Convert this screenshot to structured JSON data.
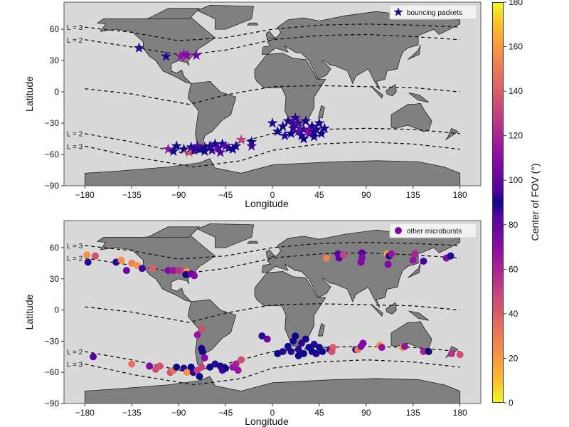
{
  "colorbar": {
    "label": "Center of FOV (°)",
    "range": [
      0,
      180
    ],
    "ticks": [
      "0",
      "20",
      "40",
      "60",
      "80",
      "100",
      "120",
      "140",
      "160",
      "180"
    ],
    "colormap": "plasma (mirrored: yellow at 0 and 180, dark blue at 90)"
  },
  "chart_data": [
    {
      "type": "scatter",
      "xlabel": "Longitude",
      "ylabel": "Latitude",
      "xlim": [
        -200,
        200
      ],
      "ylim": [
        -90,
        86
      ],
      "xticks": [
        "−180",
        "−135",
        "−90",
        "−45",
        "0",
        "45",
        "90",
        "135",
        "180"
      ],
      "yticks": [
        "−90",
        "−60",
        "−30",
        "0",
        "30",
        "60"
      ],
      "legend": {
        "label": "bouncing packets",
        "marker": "star",
        "placement": "top-right"
      },
      "l_shell_labels": {
        "north_3": "L = 3",
        "north_2": "L = 2",
        "south_2": "L = 2",
        "south_3": "L = 3"
      },
      "points": [
        [
          -128,
          42,
          95
        ],
        [
          -102,
          34,
          85
        ],
        [
          -88,
          34,
          60
        ],
        [
          -85,
          36,
          62
        ],
        [
          -82,
          35,
          65
        ],
        [
          -73,
          35,
          70
        ],
        [
          -100,
          -55,
          60
        ],
        [
          -92,
          -52,
          90
        ],
        [
          -95,
          -57,
          90
        ],
        [
          -85,
          -55,
          88
        ],
        [
          -80,
          -58,
          40
        ],
        [
          -78,
          -53,
          95
        ],
        [
          -75,
          -56,
          85
        ],
        [
          -70,
          -55,
          90
        ],
        [
          -65,
          -53,
          92
        ],
        [
          -60,
          -52,
          85
        ],
        [
          -58,
          -56,
          95
        ],
        [
          -55,
          -50,
          88
        ],
        [
          -52,
          -54,
          75
        ],
        [
          -50,
          -58,
          80
        ],
        [
          -48,
          -50,
          90
        ],
        [
          -45,
          -52,
          70
        ],
        [
          -42,
          -54,
          85
        ],
        [
          -38,
          -55,
          90
        ],
        [
          -35,
          -52,
          88
        ],
        [
          -30,
          -46,
          45
        ],
        [
          -20,
          -48,
          90
        ],
        [
          -20,
          -52,
          80
        ],
        [
          -65,
          -57,
          88
        ],
        [
          -72,
          -52,
          80
        ],
        [
          0,
          -30,
          95
        ],
        [
          5,
          -38,
          90
        ],
        [
          10,
          -33,
          92
        ],
        [
          15,
          -28,
          88
        ],
        [
          18,
          -40,
          90
        ],
        [
          20,
          -35,
          85
        ],
        [
          22,
          -25,
          95
        ],
        [
          25,
          -30,
          80
        ],
        [
          28,
          -42,
          90
        ],
        [
          30,
          -36,
          85
        ],
        [
          32,
          -28,
          92
        ],
        [
          35,
          -40,
          70
        ],
        [
          38,
          -33,
          88
        ],
        [
          40,
          -43,
          90
        ],
        [
          42,
          -36,
          95
        ],
        [
          45,
          -30,
          88
        ],
        [
          47,
          -40,
          90
        ],
        [
          50,
          -35,
          92
        ],
        [
          12,
          -42,
          95
        ],
        [
          25,
          -38,
          75
        ],
        [
          35,
          -37,
          65
        ],
        [
          30,
          -45,
          90
        ],
        [
          20,
          -30,
          100
        ],
        [
          40,
          -38,
          92
        ]
      ]
    },
    {
      "type": "scatter",
      "xlabel": "Longitude",
      "ylabel": "Latitude",
      "xlim": [
        -200,
        200
      ],
      "ylim": [
        -90,
        86
      ],
      "xticks": [
        "−180",
        "−135",
        "−90",
        "−45",
        "0",
        "45",
        "90",
        "135",
        "180"
      ],
      "yticks": [
        "−90",
        "−60",
        "−30",
        "0",
        "30",
        "60"
      ],
      "legend": {
        "label": "other microbursts",
        "marker": "circle",
        "placement": "top-right"
      },
      "l_shell_labels": {
        "north_3": "L = 3",
        "north_2": "L = 2",
        "south_2": "L = 2",
        "south_3": "L = 3"
      },
      "points": [
        [
          -178,
          53,
          20
        ],
        [
          -170,
          52,
          40
        ],
        [
          -177,
          46,
          95
        ],
        [
          -150,
          46,
          95
        ],
        [
          -145,
          48,
          20
        ],
        [
          -135,
          45,
          25
        ],
        [
          -130,
          43,
          20
        ],
        [
          -140,
          38,
          70
        ],
        [
          -125,
          40,
          80
        ],
        [
          -115,
          40,
          35
        ],
        [
          -100,
          38,
          65
        ],
        [
          -95,
          38,
          60
        ],
        [
          -90,
          38,
          50
        ],
        [
          -85,
          37,
          45
        ],
        [
          -82,
          37,
          20
        ],
        [
          -83,
          34,
          90
        ],
        [
          -78,
          35,
          70
        ],
        [
          -75,
          33,
          65
        ],
        [
          52,
          50,
          25
        ],
        [
          63,
          54,
          75
        ],
        [
          64,
          50,
          75
        ],
        [
          68,
          53,
          45
        ],
        [
          86,
          55,
          75
        ],
        [
          86,
          50,
          65
        ],
        [
          85,
          46,
          65
        ],
        [
          110,
          54,
          15
        ],
        [
          112,
          52,
          95
        ],
        [
          111,
          44,
          65
        ],
        [
          114,
          54,
          60
        ],
        [
          135,
          48,
          60
        ],
        [
          137,
          54,
          55
        ],
        [
          145,
          47,
          80
        ],
        [
          167,
          50,
          65
        ],
        [
          171,
          52,
          95
        ],
        [
          -68,
          -18,
          40
        ],
        [
          -72,
          -24,
          60
        ],
        [
          -10,
          -25,
          95
        ],
        [
          -5,
          -28,
          70
        ],
        [
          -172,
          -45,
          75
        ],
        [
          -135,
          -52,
          30
        ],
        [
          -118,
          -54,
          65
        ],
        [
          -112,
          -57,
          40
        ],
        [
          -108,
          -54,
          40
        ],
        [
          -98,
          -60,
          40
        ],
        [
          -95,
          -58,
          30
        ],
        [
          -92,
          -55,
          90
        ],
        [
          -85,
          -56,
          95
        ],
        [
          -82,
          -60,
          20
        ],
        [
          -78,
          -55,
          90
        ],
        [
          -76,
          -60,
          85
        ],
        [
          -72,
          -58,
          45
        ],
        [
          -70,
          -64,
          90
        ],
        [
          -68,
          -55,
          45
        ],
        [
          -67,
          -40,
          90
        ],
        [
          -68,
          -37,
          90
        ],
        [
          -65,
          -46,
          65
        ],
        [
          -60,
          -55,
          90
        ],
        [
          -55,
          -52,
          95
        ],
        [
          -50,
          -54,
          88
        ],
        [
          -48,
          -58,
          80
        ],
        [
          -45,
          -56,
          90
        ],
        [
          -38,
          -55,
          60
        ],
        [
          -35,
          -52,
          55
        ],
        [
          -33,
          -58,
          60
        ],
        [
          -30,
          -48,
          40
        ],
        [
          15,
          -35,
          90
        ],
        [
          18,
          -40,
          95
        ],
        [
          20,
          -30,
          92
        ],
        [
          22,
          -25,
          90
        ],
        [
          25,
          -38,
          85
        ],
        [
          28,
          -32,
          95
        ],
        [
          30,
          -42,
          90
        ],
        [
          32,
          -28,
          88
        ],
        [
          35,
          -36,
          92
        ],
        [
          38,
          -40,
          90
        ],
        [
          40,
          -33,
          85
        ],
        [
          42,
          -42,
          95
        ],
        [
          45,
          -36,
          90
        ],
        [
          48,
          -40,
          92
        ],
        [
          10,
          -40,
          95
        ],
        [
          5,
          -42,
          90
        ],
        [
          25,
          -44,
          88
        ],
        [
          55,
          -38,
          95
        ],
        [
          58,
          -36,
          35
        ],
        [
          57,
          -40,
          40
        ],
        [
          80,
          -38,
          95
        ],
        [
          82,
          -38,
          25
        ],
        [
          85,
          -35,
          65
        ],
        [
          87,
          -32,
          65
        ],
        [
          103,
          -34,
          20
        ],
        [
          105,
          -36,
          60
        ],
        [
          125,
          -36,
          20
        ],
        [
          127,
          -35,
          60
        ],
        [
          145,
          -40,
          55
        ],
        [
          150,
          -40,
          90
        ],
        [
          172,
          -42,
          50
        ],
        [
          180,
          -43,
          40
        ]
      ]
    }
  ]
}
